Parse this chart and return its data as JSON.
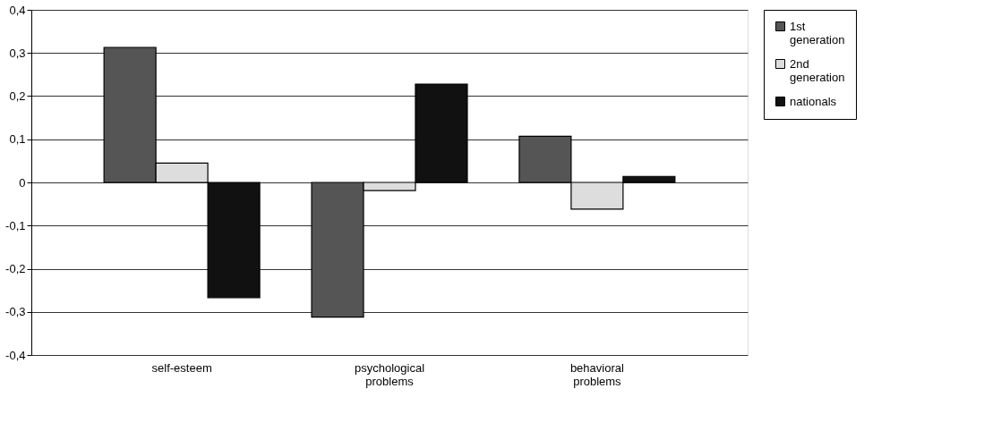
{
  "chart_data": {
    "type": "bar",
    "categories": [
      "self-esteem",
      "psychological problems",
      "behavioral problems"
    ],
    "series": [
      {
        "name": "1st generation",
        "color": "#555555",
        "values": [
          0.313,
          -0.312,
          0.107
        ]
      },
      {
        "name": "2nd generation",
        "color": "#dddddd",
        "values": [
          0.045,
          -0.019,
          -0.062
        ]
      },
      {
        "name": "nationals",
        "color": "#111111",
        "values": [
          -0.267,
          0.228,
          0.014
        ]
      }
    ],
    "ylim": [
      -0.4,
      0.4
    ],
    "yticks": [
      {
        "value": -0.4,
        "label": "-0,4"
      },
      {
        "value": -0.3,
        "label": "-0,3"
      },
      {
        "value": -0.2,
        "label": "-0,2"
      },
      {
        "value": -0.1,
        "label": "-0,1"
      },
      0,
      {
        "value": 0.1,
        "label": "0,1"
      },
      {
        "value": 0.2,
        "label": "0,2"
      },
      {
        "value": 0.3,
        "label": "0,3"
      },
      {
        "value": 0.4,
        "label": "0,4"
      }
    ],
    "grid": "y",
    "legend": "right"
  }
}
